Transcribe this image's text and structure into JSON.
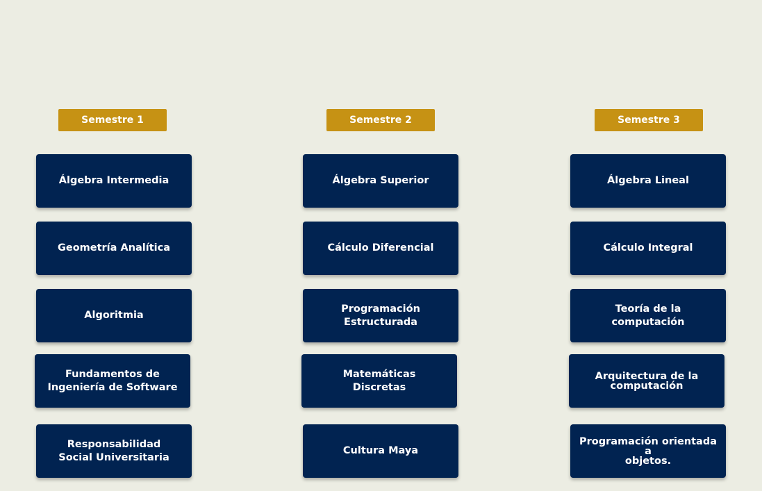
{
  "semesters": [
    {
      "title": "Semestre 1",
      "courses": [
        "Álgebra Intermedia",
        "Geometría Analítica",
        "Algoritmia",
        "Fundamentos de\nIngeniería de Software",
        "Responsabilidad\nSocial Universitaria"
      ]
    },
    {
      "title": "Semestre 2",
      "courses": [
        "Álgebra Superior",
        "Cálculo Diferencial",
        "Programación\nEstructurada",
        "Matemáticas\nDiscretas",
        "Cultura Maya"
      ]
    },
    {
      "title": "Semestre 3",
      "courses": [
        "Álgebra Lineal",
        "Cálculo Integral",
        "Teoría de la computación",
        "Arquitectura de la\ncomputación",
        "Programación orientada a\nobjetos."
      ]
    }
  ]
}
